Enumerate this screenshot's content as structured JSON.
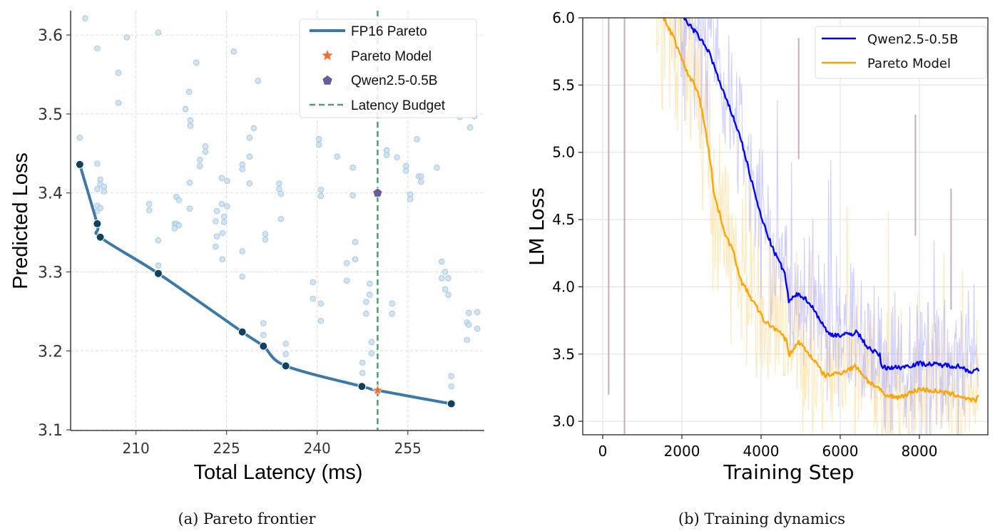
{
  "captions": {
    "a": "(a)  Pareto frontier",
    "b": "(b)  Training dynamics"
  },
  "colors": {
    "pareto_line": "#3d79a8",
    "pareto_dot": "#12405f",
    "scatter": "#c9dff0",
    "scatter_edge": "#9dbfdc",
    "star": "#ff6a33",
    "pentagon": "#6b5b9b",
    "budget": "#4c9f70",
    "qwen": "#0000ff",
    "qwen_raw": "#a8a8ff",
    "pareto_model": "#ffa500",
    "pareto_model_raw": "#ffd98a"
  },
  "chart_data": [
    {
      "type": "scatter",
      "title": "",
      "xlabel": "Total Latency (ms)",
      "ylabel": "Predicted Loss",
      "xlim": [
        199.2,
        267.7
      ],
      "ylim": [
        3.1,
        3.631
      ],
      "xticks": [
        "210",
        "225",
        "240",
        "255"
      ],
      "xtick_values": [
        210,
        225,
        240,
        255
      ],
      "yticks": [
        "3.1",
        "3.2",
        "3.3",
        "3.4",
        "3.5",
        "3.6"
      ],
      "ytick_values": [
        3.1,
        3.2,
        3.3,
        3.4,
        3.5,
        3.6
      ],
      "grid": true,
      "legend": {
        "placement": "top-right",
        "entries": [
          "FP16 Pareto",
          "Pareto Model",
          "Qwen2.5-0.5B",
          "Latency Budget"
        ]
      },
      "candidates": [
        [
          201.6,
          3.621
        ],
        [
          203.6,
          3.583
        ],
        [
          208.5,
          3.597
        ],
        [
          207.1,
          3.552
        ],
        [
          207.1,
          3.514
        ],
        [
          213.7,
          3.603
        ],
        [
          226.2,
          3.579
        ],
        [
          220.0,
          3.565
        ],
        [
          218.8,
          3.528
        ],
        [
          218.2,
          3.506
        ],
        [
          219.0,
          3.492
        ],
        [
          219.0,
          3.485
        ],
        [
          230.2,
          3.542
        ],
        [
          229.5,
          3.482
        ],
        [
          245.1,
          3.533
        ],
        [
          247.9,
          3.522
        ],
        [
          246.3,
          3.593
        ],
        [
          249.7,
          3.557
        ],
        [
          263.6,
          3.496
        ],
        [
          266.0,
          3.497
        ],
        [
          265.3,
          3.483
        ],
        [
          200.7,
          3.47
        ],
        [
          203.6,
          3.437
        ],
        [
          204.1,
          3.417
        ],
        [
          204.1,
          3.411
        ],
        [
          204.7,
          3.408
        ],
        [
          203.6,
          3.405
        ],
        [
          204.7,
          3.402
        ],
        [
          203.6,
          3.384
        ],
        [
          203.6,
          3.377
        ],
        [
          204.1,
          3.381
        ],
        [
          212.2,
          3.386
        ],
        [
          212.2,
          3.378
        ],
        [
          213.7,
          3.34
        ],
        [
          213.7,
          3.308
        ],
        [
          216.7,
          3.395
        ],
        [
          217.1,
          3.391
        ],
        [
          218.9,
          3.413
        ],
        [
          218.9,
          3.38
        ],
        [
          216.4,
          3.361
        ],
        [
          216.7,
          3.361
        ],
        [
          217.1,
          3.359
        ],
        [
          216.4,
          3.355
        ],
        [
          220.6,
          3.442
        ],
        [
          220.6,
          3.434
        ],
        [
          221.5,
          3.459
        ],
        [
          221.5,
          3.452
        ],
        [
          224.2,
          3.419
        ],
        [
          225.1,
          3.415
        ],
        [
          224.2,
          3.386
        ],
        [
          225.1,
          3.383
        ],
        [
          223.4,
          3.377
        ],
        [
          224.6,
          3.37
        ],
        [
          223.2,
          3.364
        ],
        [
          224.6,
          3.363
        ],
        [
          224.3,
          3.349
        ],
        [
          223.4,
          3.345
        ],
        [
          223.2,
          3.332
        ],
        [
          224.3,
          3.316
        ],
        [
          227.6,
          3.436
        ],
        [
          227.6,
          3.43
        ],
        [
          228.8,
          3.47
        ],
        [
          228.8,
          3.446
        ],
        [
          228.8,
          3.412
        ],
        [
          227.6,
          3.326
        ],
        [
          227.6,
          3.294
        ],
        [
          231.4,
          3.348
        ],
        [
          231.4,
          3.341
        ],
        [
          231.1,
          3.235
        ],
        [
          231.1,
          3.22
        ],
        [
          233.7,
          3.412
        ],
        [
          233.7,
          3.405
        ],
        [
          234.0,
          3.399
        ],
        [
          234.0,
          3.367
        ],
        [
          234.8,
          3.209
        ],
        [
          234.8,
          3.196
        ],
        [
          240.3,
          3.468
        ],
        [
          240.3,
          3.461
        ],
        [
          243.3,
          3.446
        ],
        [
          240.6,
          3.404
        ],
        [
          240.6,
          3.396
        ],
        [
          239.3,
          3.287
        ],
        [
          239.3,
          3.266
        ],
        [
          240.6,
          3.26
        ],
        [
          240.6,
          3.238
        ],
        [
          245.9,
          3.432
        ],
        [
          245.9,
          3.397
        ],
        [
          246.3,
          3.338
        ],
        [
          246.3,
          3.316
        ],
        [
          244.9,
          3.311
        ],
        [
          244.9,
          3.289
        ],
        [
          248.7,
          3.285
        ],
        [
          248.7,
          3.271
        ],
        [
          248.1,
          3.262
        ],
        [
          248.1,
          3.247
        ],
        [
          249.0,
          3.211
        ],
        [
          249.0,
          3.197
        ],
        [
          247.5,
          3.185
        ],
        [
          247.5,
          3.172
        ],
        [
          251.5,
          3.454
        ],
        [
          251.5,
          3.448
        ],
        [
          253.2,
          3.445
        ],
        [
          254.7,
          3.434
        ],
        [
          254.7,
          3.428
        ],
        [
          256.5,
          3.468
        ],
        [
          256.8,
          3.421
        ],
        [
          257.2,
          3.421
        ],
        [
          257.2,
          3.414
        ],
        [
          255.4,
          3.398
        ],
        [
          255.4,
          3.392
        ],
        [
          259.8,
          3.432
        ],
        [
          252.4,
          3.26
        ],
        [
          252.4,
          3.247
        ],
        [
          260.6,
          3.313
        ],
        [
          261.2,
          3.3
        ],
        [
          260.6,
          3.292
        ],
        [
          261.7,
          3.292
        ],
        [
          261.2,
          3.278
        ],
        [
          261.7,
          3.271
        ],
        [
          262.2,
          3.168
        ],
        [
          262.2,
          3.155
        ],
        [
          265.1,
          3.248
        ],
        [
          266.5,
          3.249
        ],
        [
          264.8,
          3.236
        ],
        [
          265.1,
          3.233
        ],
        [
          266.5,
          3.228
        ],
        [
          264.8,
          3.214
        ]
      ],
      "series": [
        {
          "name": "FP16 Pareto",
          "type": "line",
          "points": [
            [
              200.7,
              3.436
            ],
            [
              203.6,
              3.361
            ],
            [
              204.1,
              3.344
            ],
            [
              213.7,
              3.298
            ],
            [
              227.6,
              3.224
            ],
            [
              231.1,
              3.206
            ],
            [
              234.8,
              3.181
            ],
            [
              247.4,
              3.155
            ],
            [
              250.0,
              3.15
            ],
            [
              262.2,
              3.133
            ]
          ]
        },
        {
          "name": "Pareto Model",
          "type": "marker-star",
          "points": [
            [
              250.0,
              3.15
            ]
          ]
        },
        {
          "name": "Qwen2.5-0.5B",
          "type": "marker-pentagon",
          "points": [
            [
              250.0,
              3.4
            ]
          ]
        },
        {
          "name": "Latency Budget",
          "type": "vline",
          "x": 250.0
        }
      ]
    },
    {
      "type": "line",
      "title": "",
      "xlabel": "Training Step",
      "ylabel": "LM Loss",
      "xlim": [
        -505,
        9730
      ],
      "ylim": [
        2.897,
        6.0
      ],
      "xticks": [
        "0",
        "2000",
        "4000",
        "6000",
        "8000"
      ],
      "xtick_values": [
        0,
        2000,
        4000,
        6000,
        8000
      ],
      "yticks": [
        "3.0",
        "3.5",
        "4.0",
        "4.5",
        "5.0",
        "5.5",
        "6.0"
      ],
      "ytick_values": [
        3.0,
        3.5,
        4.0,
        4.5,
        5.0,
        5.5,
        6.0
      ],
      "grid": true,
      "legend": {
        "placement": "top-right",
        "entries": [
          "Qwen2.5-0.5B",
          "Pareto Model"
        ]
      },
      "series": [
        {
          "name": "Qwen2.5-0.5B",
          "x": [
            2000,
            2400,
            2700,
            3000,
            3300,
            3500,
            3800,
            4000,
            4300,
            4600,
            4700,
            4950,
            5200,
            5400,
            5700,
            6000,
            6300,
            6400,
            6700,
            7000,
            7050,
            7500,
            8000,
            8500,
            9000,
            9300,
            9500
          ],
          "y": [
            6.02,
            5.87,
            5.74,
            5.48,
            5.26,
            5.09,
            4.74,
            4.52,
            4.28,
            4.1,
            3.89,
            3.95,
            3.89,
            3.8,
            3.65,
            3.64,
            3.65,
            3.67,
            3.55,
            3.49,
            3.4,
            3.4,
            3.43,
            3.42,
            3.41,
            3.37,
            3.38
          ]
        },
        {
          "name": "Pareto Model",
          "x": [
            1500,
            1800,
            2100,
            2400,
            2600,
            2750,
            2800,
            3100,
            3300,
            3500,
            3800,
            4100,
            4400,
            4650,
            4700,
            4950,
            5300,
            5600,
            6000,
            6400,
            6700,
            7000,
            7100,
            7500,
            8000,
            8500,
            9000,
            9400,
            9500
          ],
          "y": [
            6.02,
            5.85,
            5.61,
            5.46,
            5.17,
            4.87,
            4.7,
            4.39,
            4.26,
            4.04,
            3.89,
            3.74,
            3.68,
            3.6,
            3.49,
            3.59,
            3.47,
            3.34,
            3.36,
            3.41,
            3.3,
            3.24,
            3.19,
            3.18,
            3.24,
            3.22,
            3.19,
            3.15,
            3.18
          ]
        }
      ],
      "raw_spikes": [
        [
          150,
          3.2
        ],
        [
          550,
          2.85
        ],
        [
          4950,
          5.85
        ],
        [
          7900,
          5.28
        ],
        [
          8800,
          4.73
        ]
      ]
    }
  ]
}
